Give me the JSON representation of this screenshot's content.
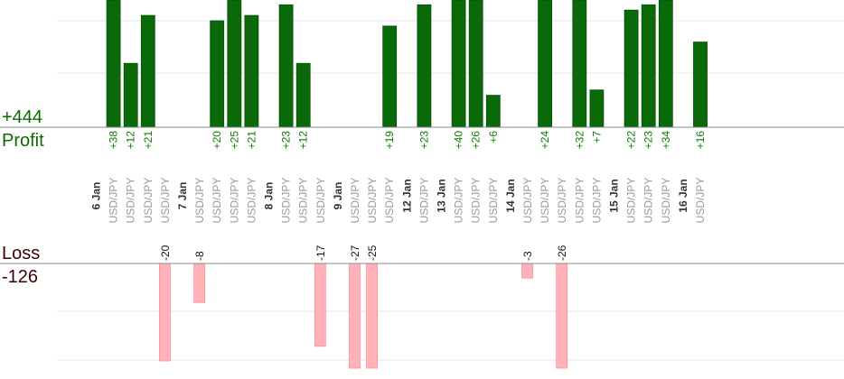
{
  "profit_panel": {
    "total": "+444",
    "label": "Profit"
  },
  "loss_panel": {
    "label": "Loss",
    "total": "-126"
  },
  "colors": {
    "profit_bar": "#0a6a0a",
    "loss_bar": "#ffb3b8",
    "axis": "#888888",
    "grid": "#e6e6e6",
    "date_text": "#333333",
    "pair_text": "#999999",
    "profit_text": "#0d7a00",
    "loss_text": "#111111"
  },
  "chart_data": {
    "type": "bar",
    "pair": "USD/JPY",
    "dates": [
      "6 Jan",
      "7 Jan",
      "8 Jan",
      "9 Jan",
      "12 Jan",
      "13 Jan",
      "14 Jan",
      "15 Jan",
      "16 Jan"
    ],
    "trades": [
      {
        "date": "6 Jan",
        "value": 38
      },
      {
        "date": "6 Jan",
        "value": 12
      },
      {
        "date": "6 Jan",
        "value": 21
      },
      {
        "date": "6 Jan",
        "value": -20
      },
      {
        "date": "7 Jan",
        "value": -8
      },
      {
        "date": "7 Jan",
        "value": 20
      },
      {
        "date": "7 Jan",
        "value": 25
      },
      {
        "date": "7 Jan",
        "value": 21
      },
      {
        "date": "8 Jan",
        "value": 23
      },
      {
        "date": "8 Jan",
        "value": 12
      },
      {
        "date": "8 Jan",
        "value": -17
      },
      {
        "date": "9 Jan",
        "value": -27
      },
      {
        "date": "9 Jan",
        "value": -25
      },
      {
        "date": "9 Jan",
        "value": 19
      },
      {
        "date": "12 Jan",
        "value": 23
      },
      {
        "date": "13 Jan",
        "value": 40
      },
      {
        "date": "13 Jan",
        "value": 26
      },
      {
        "date": "13 Jan",
        "value": 6
      },
      {
        "date": "14 Jan",
        "value": -3
      },
      {
        "date": "14 Jan",
        "value": 24
      },
      {
        "date": "14 Jan",
        "value": -26
      },
      {
        "date": "14 Jan",
        "value": 32
      },
      {
        "date": "14 Jan",
        "value": 7
      },
      {
        "date": "15 Jan",
        "value": 22
      },
      {
        "date": "15 Jan",
        "value": 23
      },
      {
        "date": "15 Jan",
        "value": 34
      },
      {
        "date": "16 Jan",
        "value": 16
      }
    ]
  }
}
